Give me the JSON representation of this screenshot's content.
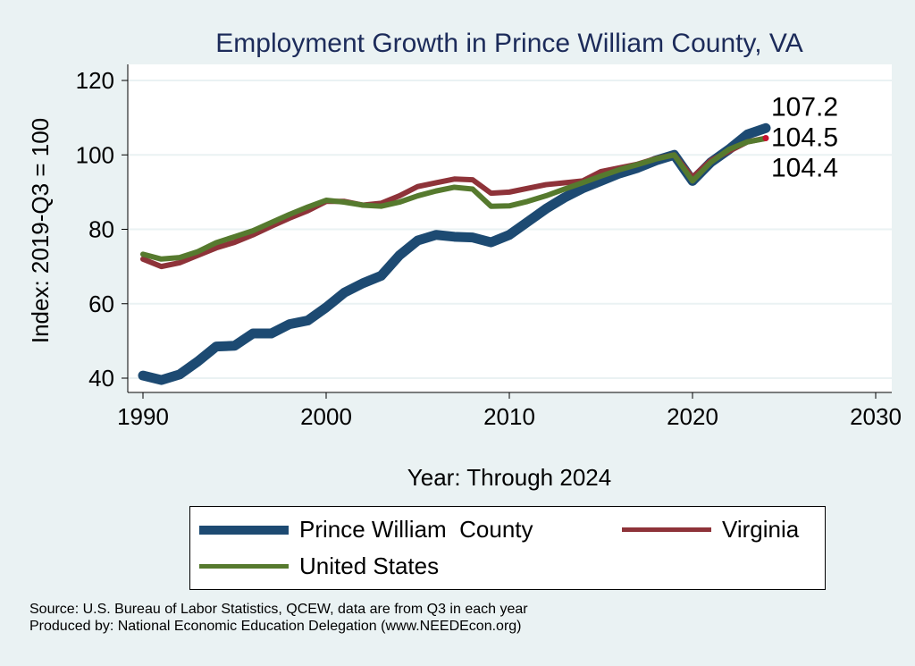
{
  "chart_data": {
    "type": "line",
    "title": "Employment Growth in Prince William County, VA",
    "xlabel": "Year: Through 2024",
    "ylabel": "Index: 2019-Q3 = 100",
    "xlim": [
      1990,
      2030
    ],
    "ylim": [
      40,
      120
    ],
    "xticks": [
      1990,
      2000,
      2010,
      2020,
      2030
    ],
    "yticks": [
      40,
      60,
      80,
      100,
      120
    ],
    "grid": true,
    "legend_position": "bottom",
    "x": [
      1990,
      1991,
      1992,
      1993,
      1994,
      1995,
      1996,
      1997,
      1998,
      1999,
      2000,
      2001,
      2002,
      2003,
      2004,
      2005,
      2006,
      2007,
      2008,
      2009,
      2010,
      2011,
      2012,
      2013,
      2014,
      2015,
      2016,
      2017,
      2018,
      2019,
      2020,
      2021,
      2022,
      2023,
      2024
    ],
    "series": [
      {
        "name": "Prince William  County",
        "color": "#1d4a72",
        "values": [
          40.7,
          39.5,
          41,
          44.5,
          48.5,
          48.7,
          52,
          52,
          54.5,
          55.5,
          59,
          63,
          65.5,
          67.5,
          73,
          77,
          78.5,
          78,
          77.8,
          76.5,
          78.5,
          82,
          85.5,
          88.5,
          91,
          93,
          95,
          96.5,
          98.5,
          100,
          93,
          98,
          101.5,
          105.5,
          107.2
        ],
        "end_label": "107.2"
      },
      {
        "name": "Virginia",
        "color": "#8e3339",
        "values": [
          72,
          70,
          71,
          73,
          75,
          76.5,
          78.5,
          80.8,
          83,
          85,
          87.5,
          87.5,
          86.5,
          87,
          89,
          91.5,
          92.5,
          93.5,
          93.3,
          89.7,
          90,
          91,
          92,
          92.5,
          93,
          95.5,
          96.5,
          97.5,
          99,
          100,
          94,
          98.5,
          101,
          103.5,
          104.5
        ],
        "end_label": "104.5"
      },
      {
        "name": "United States",
        "color": "#567a2e",
        "values": [
          73.3,
          72,
          72.4,
          74,
          76.4,
          78,
          79.6,
          81.8,
          84,
          86,
          87.8,
          87.3,
          86.5,
          86.2,
          87.3,
          89,
          90.3,
          91.3,
          90.8,
          86.2,
          86.3,
          87.5,
          89,
          90.8,
          92.5,
          94.3,
          96,
          97.4,
          98.9,
          100,
          93,
          98,
          101.5,
          103.5,
          104.4
        ],
        "end_label": "104.4"
      }
    ]
  },
  "notes": {
    "source": "Source: U.S. Bureau of Labor Statistics, QCEW, data are from Q3 in each year",
    "produced": "Produced by: National Economic Education Delegation (www.NEEDEcon.org)"
  }
}
